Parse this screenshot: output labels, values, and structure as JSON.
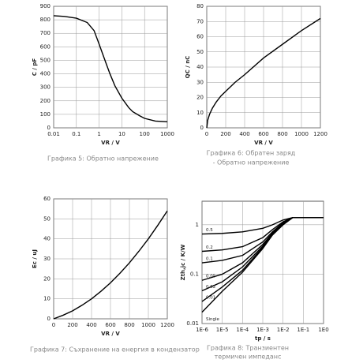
{
  "chart_data": [
    {
      "type": "line",
      "x_label": "VR / V",
      "y_label": "C / pF",
      "caption": [
        "Графика 5: Обратно напрежение"
      ],
      "xscale": "log",
      "xlim": [
        0.01,
        1000
      ],
      "xticks": [
        0.01,
        0.1,
        1,
        10,
        100,
        1000
      ],
      "ylim": [
        0,
        900
      ],
      "yticks": [
        0,
        100,
        200,
        300,
        400,
        500,
        600,
        700,
        800,
        900
      ],
      "grid": true,
      "series": [
        {
          "name": null,
          "color": "#000000",
          "x": [
            0.01,
            0.03,
            0.1,
            0.3,
            0.6,
            1,
            2,
            3,
            5,
            10,
            20,
            30,
            60,
            100,
            300,
            1000
          ],
          "values": [
            830,
            825,
            812,
            780,
            720,
            620,
            480,
            400,
            310,
            220,
            150,
            120,
            90,
            70,
            50,
            45
          ]
        }
      ]
    },
    {
      "type": "line",
      "x_label": "VR / V",
      "y_label": "QC / nC",
      "caption": [
        "Графика 6: Обратен заряд",
        "- Обратно напрежение"
      ],
      "xscale": "linear",
      "xlim": [
        0,
        1200
      ],
      "xticks": [
        0,
        200,
        400,
        600,
        800,
        1000,
        1200
      ],
      "ylim": [
        0,
        80
      ],
      "yticks": [
        0,
        10,
        20,
        30,
        40,
        50,
        60,
        70,
        80
      ],
      "grid": true,
      "series": [
        {
          "name": null,
          "color": "#000000",
          "x": [
            0,
            10,
            30,
            60,
            100,
            150,
            200,
            300,
            400,
            600,
            800,
            1000,
            1200
          ],
          "values": [
            0,
            5,
            9,
            13,
            17,
            21,
            24,
            30,
            35,
            46,
            55,
            64,
            72
          ]
        }
      ]
    },
    {
      "type": "line",
      "x_label": "VR / V",
      "y_label": "Ec / uJ",
      "caption": [
        "Графика 7: Съхранение на енергия в кондензатор"
      ],
      "xscale": "linear",
      "xlim": [
        0,
        1200
      ],
      "xticks": [
        0,
        200,
        400,
        600,
        800,
        1000,
        1200
      ],
      "ylim": [
        0,
        60
      ],
      "yticks": [
        0,
        10,
        20,
        30,
        40,
        50,
        60
      ],
      "grid": true,
      "series": [
        {
          "name": null,
          "color": "#000000",
          "x": [
            0,
            100,
            200,
            300,
            400,
            500,
            600,
            700,
            800,
            900,
            1000,
            1100,
            1200
          ],
          "values": [
            0,
            1.8,
            4,
            6.8,
            10,
            13.8,
            18,
            22.8,
            28,
            33.8,
            40,
            46.8,
            54
          ]
        }
      ]
    },
    {
      "type": "line",
      "x_label": "tp / s",
      "y_label": "Zth,jc / K/W",
      "caption": [
        "Графика 8: Транзиентен",
        "термичен импеданс"
      ],
      "xscale": "log",
      "yscale": "log",
      "xlim": [
        1e-06,
        1
      ],
      "xticks": [
        {
          "value": 1e-06,
          "label": "1E-6"
        },
        {
          "value": 1e-05,
          "label": "1E-5"
        },
        {
          "value": 0.0001,
          "label": "1E-4"
        },
        {
          "value": 0.001,
          "label": "1E-3"
        },
        {
          "value": 0.01,
          "label": "1E-2"
        },
        {
          "value": 0.1,
          "label": "1E-1"
        },
        {
          "value": 1,
          "label": "1E0"
        }
      ],
      "ylim": [
        0.01,
        3
      ],
      "yticks": [
        0.01,
        0.1,
        1
      ],
      "grid": true,
      "series": [
        {
          "name": "0.5",
          "color": "#000000",
          "x": [
            1e-06,
            1e-05,
            0.0001,
            0.001,
            0.003,
            0.01,
            0.03,
            0.1,
            1
          ],
          "values": [
            0.65,
            0.67,
            0.72,
            0.85,
            1.0,
            1.25,
            1.4,
            1.4,
            1.4
          ]
        },
        {
          "name": "0.2",
          "color": "#000000",
          "x": [
            1e-06,
            1e-05,
            0.0001,
            0.001,
            0.003,
            0.01,
            0.03,
            0.1,
            1
          ],
          "values": [
            0.29,
            0.31,
            0.36,
            0.55,
            0.8,
            1.15,
            1.4,
            1.4,
            1.4
          ]
        },
        {
          "name": "0.1",
          "color": "#000000",
          "x": [
            1e-06,
            1e-05,
            0.0001,
            0.001,
            0.003,
            0.01,
            0.03,
            0.1,
            1
          ],
          "values": [
            0.17,
            0.19,
            0.24,
            0.45,
            0.72,
            1.1,
            1.4,
            1.4,
            1.4
          ]
        },
        {
          "name": "0.05",
          "color": "#000000",
          "x": [
            1e-06,
            1e-05,
            0.0001,
            0.001,
            0.003,
            0.01,
            0.03,
            0.1,
            1
          ],
          "values": [
            0.075,
            0.1,
            0.17,
            0.4,
            0.68,
            1.05,
            1.4,
            1.4,
            1.4
          ]
        },
        {
          "name": "0.02",
          "color": "#000000",
          "x": [
            1e-06,
            1e-05,
            0.0001,
            0.001,
            0.003,
            0.01,
            0.03,
            0.1,
            1
          ],
          "values": [
            0.046,
            0.07,
            0.14,
            0.37,
            0.65,
            1.02,
            1.4,
            1.4,
            1.4
          ]
        },
        {
          "name": "0.01",
          "color": "#000000",
          "x": [
            1e-06,
            1e-05,
            0.0001,
            0.001,
            0.003,
            0.01,
            0.03,
            0.1,
            1
          ],
          "values": [
            0.028,
            0.055,
            0.12,
            0.35,
            0.63,
            1.0,
            1.4,
            1.4,
            1.4
          ]
        },
        {
          "name": "Single",
          "color": "#000000",
          "x": [
            1e-06,
            1e-05,
            0.0001,
            0.001,
            0.003,
            0.01,
            0.03,
            0.1,
            1
          ],
          "values": [
            0.017,
            0.045,
            0.11,
            0.33,
            0.62,
            1.0,
            1.4,
            1.4,
            1.4
          ]
        }
      ]
    }
  ]
}
